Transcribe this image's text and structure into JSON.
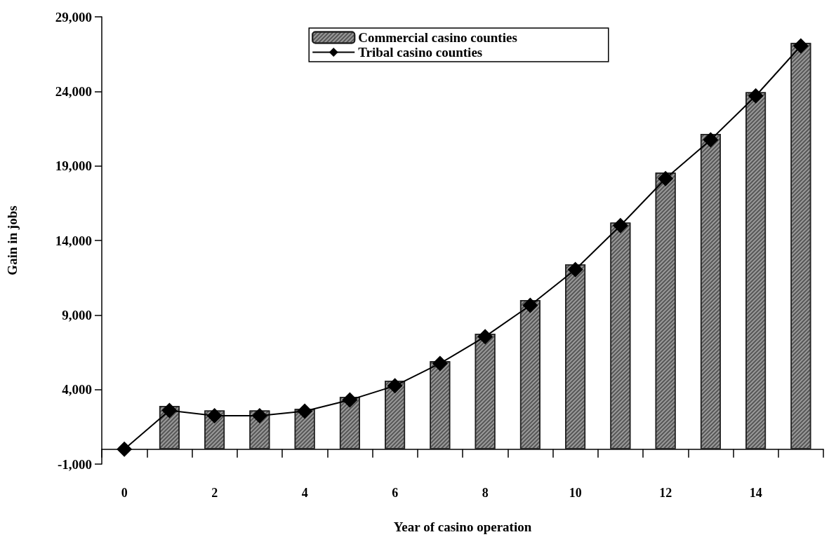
{
  "chart_data": {
    "type": "bar",
    "xlabel": "Year of casino operation",
    "ylabel": "Gain in jobs",
    "categories": [
      "0",
      null,
      "2",
      null,
      "4",
      null,
      "6",
      null,
      "8",
      null,
      "10",
      null,
      "12",
      null,
      "14",
      null
    ],
    "series": [
      {
        "name": "Commercial casino counties",
        "color": "#9a9a9a",
        "values": [
          null,
          2900,
          2600,
          2600,
          2700,
          3500,
          4600,
          5900,
          7750,
          10000,
          12400,
          15200,
          18550,
          21150,
          23950,
          27250
        ]
      },
      {
        "name": "Tribal casino counties",
        "type": "line",
        "color": "#000000",
        "marker": "diamond",
        "values": [
          0,
          2600,
          2250,
          2250,
          2550,
          3300,
          4250,
          5750,
          7550,
          9650,
          12050,
          15000,
          18150,
          20750,
          23700,
          27050
        ]
      }
    ],
    "ylim": [
      -1000,
      29000
    ],
    "yticks": [
      {
        "value": -1000,
        "label": "-1,000"
      },
      {
        "value": 4000,
        "label": "4,000"
      },
      {
        "value": 9000,
        "label": "9,000"
      },
      {
        "value": 14000,
        "label": "14,000"
      },
      {
        "value": 19000,
        "label": "19,000"
      },
      {
        "value": 24000,
        "label": "24,000"
      },
      {
        "value": 29000,
        "label": "29,000"
      }
    ],
    "grid": false,
    "legend": "top"
  }
}
